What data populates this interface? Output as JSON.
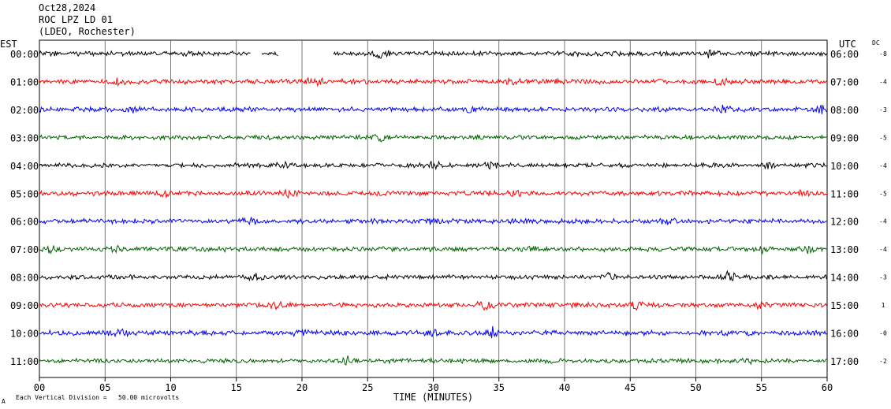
{
  "header": {
    "date": "Oct28,2024",
    "station": "ROC LPZ LD 01",
    "network": "(LDEO, Rochester)"
  },
  "labels": {
    "left_timezone": "EST",
    "right_timezone": "UTC",
    "dc_header": "DC"
  },
  "footer": {
    "scale_text": "Each Vertical Division =   50.00 microvolts",
    "corner_mark": "A"
  },
  "chart_data": {
    "type": "line",
    "title": "Oct28,2024",
    "xlabel": "TIME (MINUTES)",
    "ylabel": "",
    "xlim": [
      0,
      60
    ],
    "x_ticks": [
      "00",
      "05",
      "10",
      "15",
      "20",
      "25",
      "30",
      "35",
      "40",
      "45",
      "50",
      "55",
      "60"
    ],
    "grid": "vertical lines every 5 minutes",
    "rows": [
      {
        "left": "00:00",
        "right": "06:00",
        "dc": "-8",
        "color": "#000000",
        "amp": 3,
        "gaps": [
          [
            16.1,
            16.9
          ],
          [
            18.2,
            22.4
          ]
        ],
        "bursts": [
          [
            26,
            5
          ],
          [
            51,
            3
          ]
        ]
      },
      {
        "left": "01:00",
        "right": "07:00",
        "dc": "-4",
        "color": "#ff0000",
        "amp": 3.2,
        "gaps": [],
        "bursts": [
          [
            6,
            5
          ],
          [
            21,
            6
          ],
          [
            36,
            5
          ],
          [
            52,
            5
          ]
        ]
      },
      {
        "left": "02:00",
        "right": "08:00",
        "dc": "-3",
        "color": "#0000ff",
        "amp": 3,
        "gaps": [],
        "bursts": [
          [
            7,
            4
          ],
          [
            33,
            4
          ],
          [
            52,
            5
          ],
          [
            59.5,
            5
          ]
        ]
      },
      {
        "left": "03:00",
        "right": "09:00",
        "dc": "-5",
        "color": "#006400",
        "amp": 2.8,
        "gaps": [],
        "bursts": [
          [
            26,
            6
          ],
          [
            33,
            3
          ]
        ]
      },
      {
        "left": "04:00",
        "right": "10:00",
        "dc": "-4",
        "color": "#000000",
        "amp": 2.8,
        "gaps": [],
        "bursts": [
          [
            18.5,
            4
          ],
          [
            30,
            4
          ],
          [
            34.5,
            5
          ],
          [
            55.5,
            5
          ]
        ]
      },
      {
        "left": "05:00",
        "right": "11:00",
        "dc": "-5",
        "color": "#ff0000",
        "amp": 3,
        "gaps": [],
        "bursts": [
          [
            9.5,
            4
          ],
          [
            19,
            4
          ],
          [
            34,
            4
          ],
          [
            36,
            4
          ],
          [
            58,
            3
          ]
        ]
      },
      {
        "left": "06:00",
        "right": "12:00",
        "dc": "-4",
        "color": "#0000ff",
        "amp": 3,
        "gaps": [],
        "bursts": [
          [
            16,
            4
          ],
          [
            30,
            5
          ],
          [
            37.5,
            4
          ],
          [
            48,
            3
          ]
        ]
      },
      {
        "left": "07:00",
        "right": "13:00",
        "dc": "-4",
        "color": "#006400",
        "amp": 3,
        "gaps": [],
        "bursts": [
          [
            1,
            4
          ],
          [
            6,
            3
          ],
          [
            37.5,
            3
          ],
          [
            55,
            4
          ],
          [
            58.5,
            4
          ]
        ]
      },
      {
        "left": "08:00",
        "right": "14:00",
        "dc": "-3",
        "color": "#000000",
        "amp": 2.8,
        "gaps": [],
        "bursts": [
          [
            16.5,
            4
          ],
          [
            43.5,
            5
          ],
          [
            52.5,
            7
          ]
        ]
      },
      {
        "left": "09:00",
        "right": "15:00",
        "dc": "1",
        "color": "#ff0000",
        "amp": 3,
        "gaps": [],
        "bursts": [
          [
            18,
            5
          ],
          [
            34,
            6
          ],
          [
            45.5,
            4
          ],
          [
            55,
            4
          ]
        ]
      },
      {
        "left": "10:00",
        "right": "16:00",
        "dc": "-0",
        "color": "#0000ff",
        "amp": 3.2,
        "gaps": [],
        "bursts": [
          [
            6,
            4
          ],
          [
            20,
            4
          ],
          [
            30,
            5
          ],
          [
            34.5,
            6
          ]
        ]
      },
      {
        "left": "11:00",
        "right": "17:00",
        "dc": "-2",
        "color": "#006400",
        "amp": 2.8,
        "gaps": [],
        "bursts": [
          [
            23.5,
            6
          ],
          [
            54,
            4
          ]
        ]
      }
    ]
  }
}
